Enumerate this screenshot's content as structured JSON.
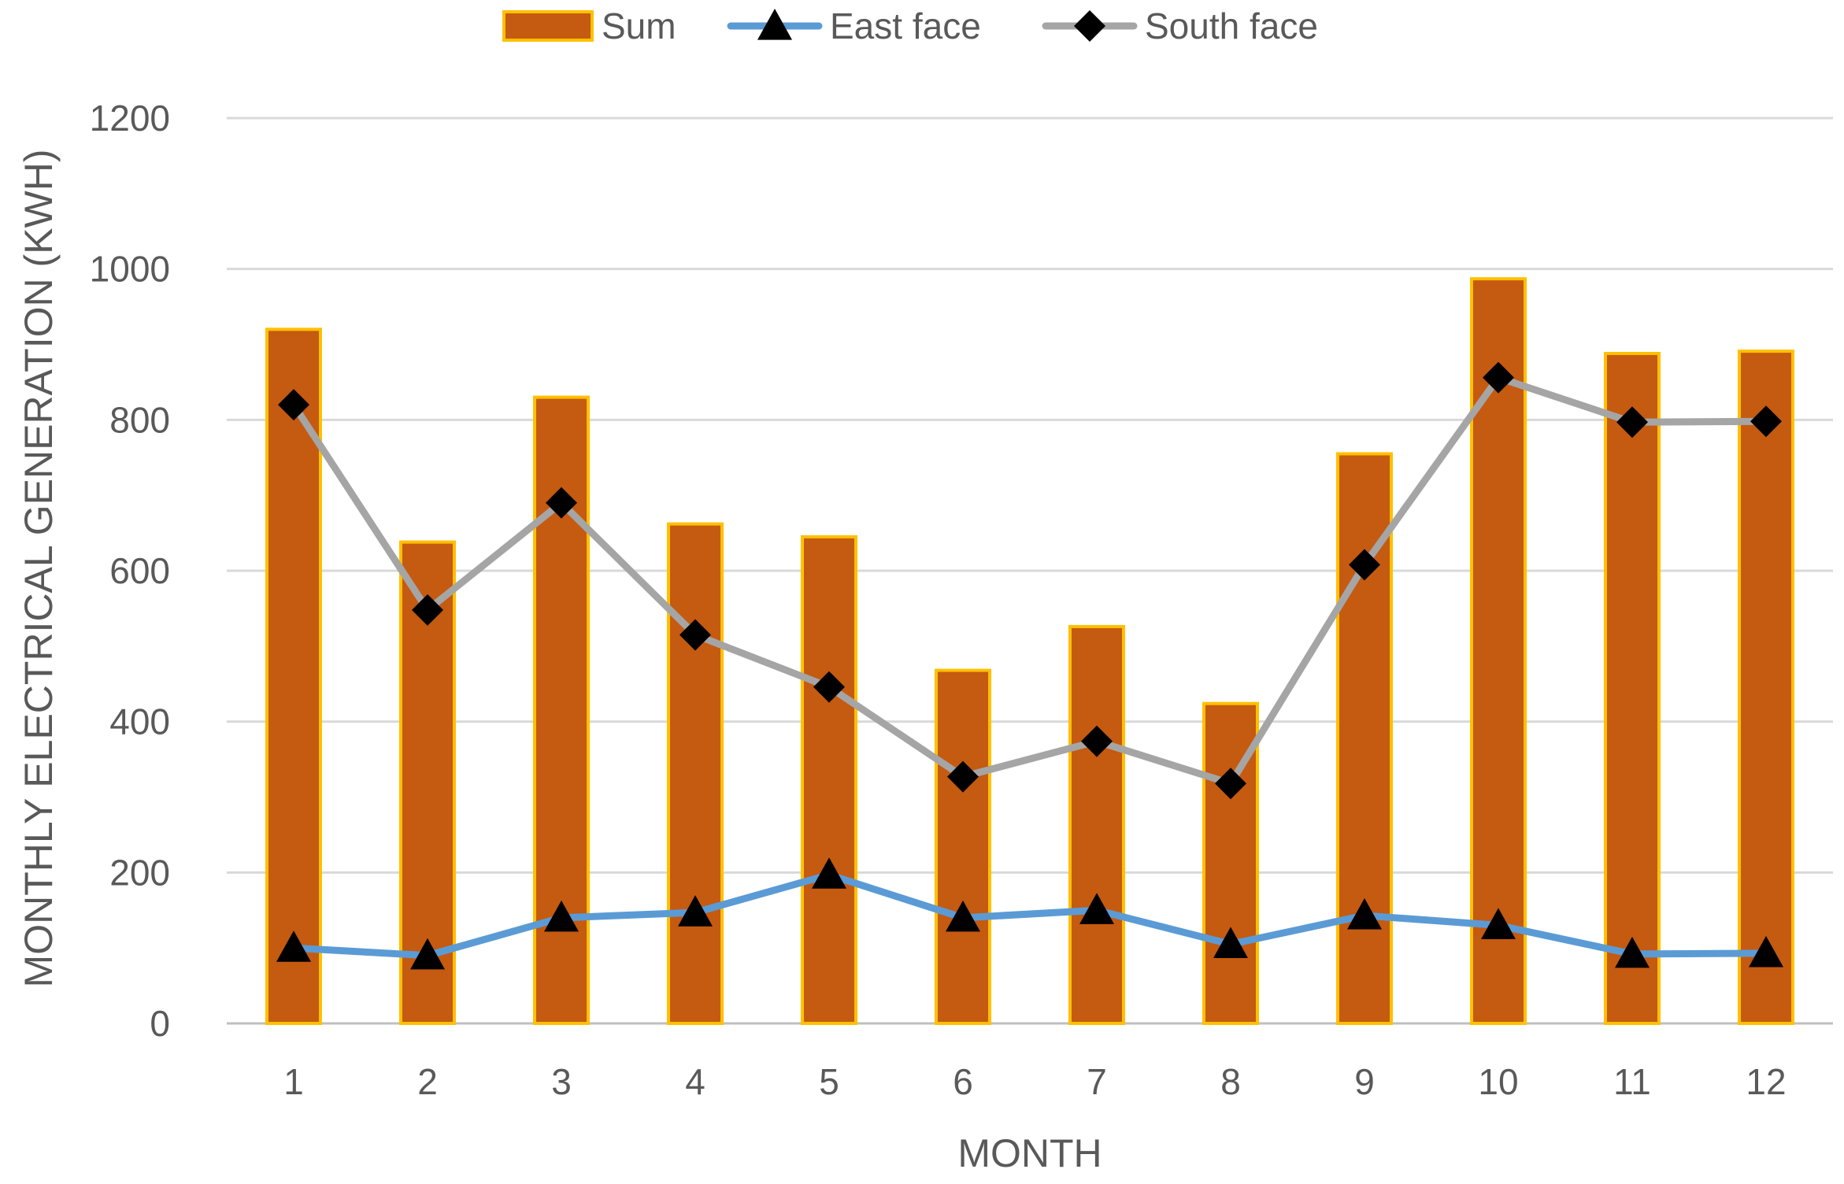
{
  "chart_data": {
    "type": "bar",
    "title": "",
    "xlabel": "MONTH",
    "ylabel": "MONTHLY ELECTRICAL GENERATION (KWH)",
    "ylim": [
      0,
      1200
    ],
    "yticks": [
      0,
      200,
      400,
      600,
      800,
      1000,
      1200
    ],
    "grid": true,
    "legend_position": "top-center",
    "categories": [
      "1",
      "2",
      "3",
      "4",
      "5",
      "6",
      "7",
      "8",
      "9",
      "10",
      "11",
      "12"
    ],
    "series": [
      {
        "name": "Sum",
        "kind": "bar",
        "fill": "#C55A11",
        "stroke": "#FFC000",
        "values": [
          920,
          638,
          830,
          662,
          645,
          468,
          526,
          424,
          755,
          987,
          888,
          891
        ]
      },
      {
        "name": "East face",
        "kind": "line",
        "color": "#5B9BD5",
        "marker": "triangle",
        "values": [
          100,
          90,
          140,
          147,
          197,
          140,
          150,
          105,
          143,
          130,
          92,
          93
        ]
      },
      {
        "name": "South face",
        "kind": "line",
        "color": "#A5A5A5",
        "marker": "diamond",
        "values": [
          820,
          548,
          690,
          515,
          446,
          327,
          374,
          318,
          608,
          856,
          797,
          798
        ]
      }
    ]
  }
}
